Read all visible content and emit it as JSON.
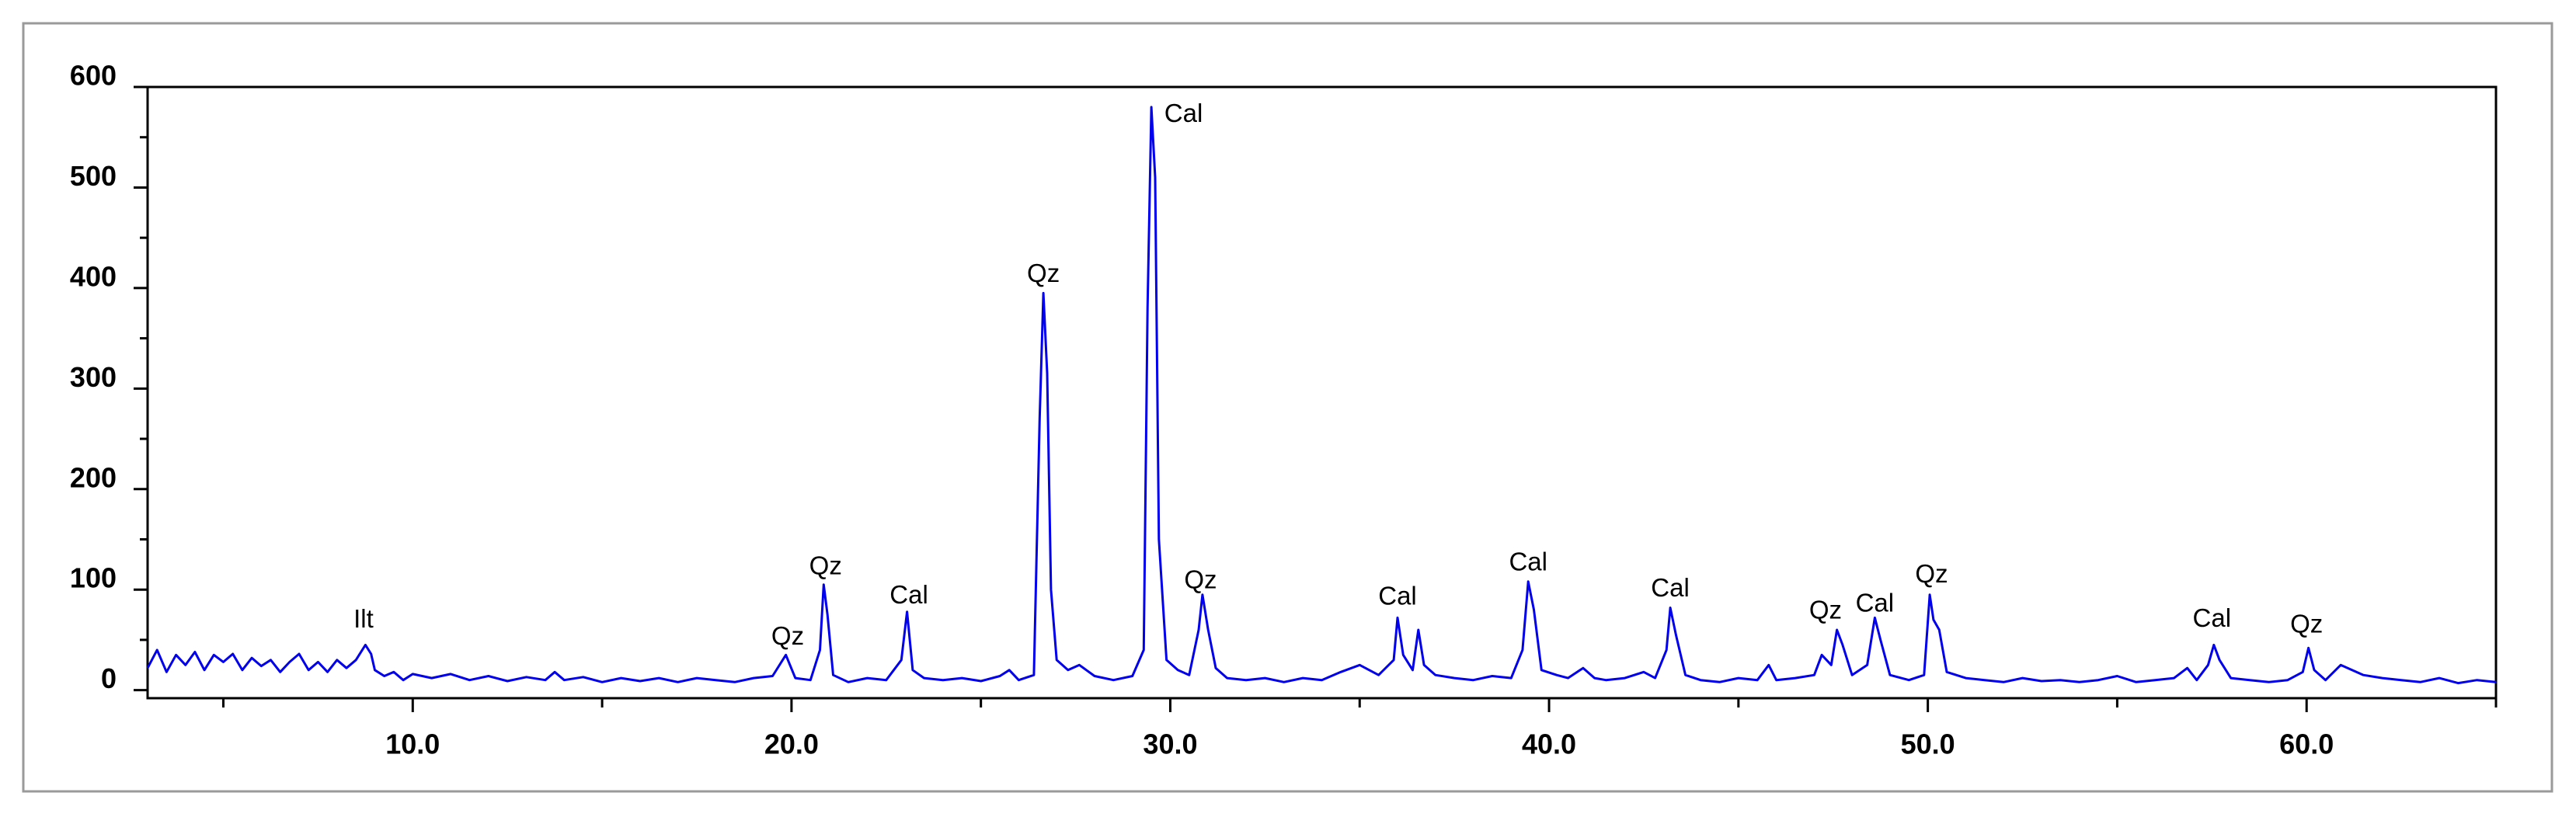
{
  "chart_data": {
    "type": "line",
    "color": "#0000ee",
    "xlim": [
      3,
      65
    ],
    "ylim": [
      -8,
      600
    ],
    "xticks": [
      {
        "value": 10,
        "label": "10.0"
      },
      {
        "value": 20,
        "label": "20.0"
      },
      {
        "value": 30,
        "label": "30.0"
      },
      {
        "value": 40,
        "label": "40.0"
      },
      {
        "value": 50,
        "label": "50.0"
      },
      {
        "value": 60,
        "label": "60.0"
      }
    ],
    "xminorticks": [
      5,
      15,
      25,
      35,
      45,
      55,
      65
    ],
    "yticks": [
      0,
      100,
      200,
      300,
      400,
      500,
      600
    ],
    "yminorticks": [
      50,
      150,
      250,
      350,
      450,
      550
    ],
    "x": [
      3.0,
      3.25,
      3.5,
      3.75,
      4.0,
      4.25,
      4.5,
      4.75,
      5.0,
      5.25,
      5.5,
      5.75,
      6.0,
      6.25,
      6.5,
      6.75,
      7.0,
      7.25,
      7.5,
      7.75,
      8.0,
      8.25,
      8.5,
      8.75,
      8.9,
      9.0,
      9.25,
      9.5,
      9.75,
      10.0,
      10.5,
      11.0,
      11.5,
      12.0,
      12.5,
      13.0,
      13.5,
      13.75,
      14.0,
      14.5,
      15.0,
      15.5,
      16.0,
      16.5,
      17.0,
      17.5,
      18.0,
      18.5,
      19.0,
      19.5,
      19.85,
      20.1,
      20.5,
      20.75,
      20.85,
      20.95,
      21.1,
      21.5,
      22.0,
      22.5,
      22.9,
      23.05,
      23.2,
      23.5,
      24.0,
      24.5,
      25.0,
      25.5,
      25.75,
      26.0,
      26.4,
      26.55,
      26.65,
      26.75,
      26.85,
      27.0,
      27.3,
      27.6,
      28.0,
      28.5,
      29.0,
      29.3,
      29.4,
      29.5,
      29.6,
      29.7,
      29.9,
      30.2,
      30.5,
      30.75,
      30.85,
      31.0,
      31.2,
      31.5,
      32.0,
      32.5,
      33.0,
      33.5,
      34.0,
      34.5,
      35.0,
      35.5,
      35.9,
      36.0,
      36.15,
      36.4,
      36.55,
      36.7,
      37.0,
      37.5,
      38.0,
      38.5,
      39.0,
      39.3,
      39.45,
      39.6,
      39.8,
      40.2,
      40.5,
      40.9,
      41.2,
      41.5,
      42.0,
      42.5,
      42.8,
      43.1,
      43.2,
      43.35,
      43.6,
      44.0,
      44.5,
      45.0,
      45.5,
      45.8,
      46.0,
      46.5,
      47.0,
      47.2,
      47.45,
      47.6,
      47.75,
      48.0,
      48.4,
      48.6,
      48.75,
      49.0,
      49.5,
      49.9,
      50.05,
      50.15,
      50.3,
      50.5,
      51.0,
      51.5,
      52.0,
      52.5,
      53.0,
      53.5,
      54.0,
      54.5,
      55.0,
      55.5,
      56.0,
      56.5,
      56.85,
      57.1,
      57.4,
      57.55,
      57.7,
      58.0,
      58.5,
      59.0,
      59.5,
      59.9,
      60.05,
      60.2,
      60.5,
      60.9,
      61.2,
      61.5,
      62.0,
      62.5,
      63.0,
      63.5,
      64.0,
      64.5,
      65.0
    ],
    "values": [
      22,
      40,
      18,
      35,
      25,
      38,
      20,
      35,
      28,
      36,
      20,
      32,
      24,
      30,
      18,
      28,
      36,
      20,
      28,
      18,
      30,
      22,
      30,
      45,
      36,
      20,
      14,
      18,
      10,
      16,
      12,
      16,
      10,
      14,
      9,
      13,
      10,
      18,
      10,
      13,
      8,
      12,
      9,
      12,
      8,
      12,
      10,
      8,
      12,
      14,
      35,
      12,
      10,
      40,
      105,
      75,
      15,
      8,
      12,
      10,
      30,
      78,
      20,
      12,
      10,
      12,
      9,
      14,
      20,
      10,
      15,
      270,
      395,
      315,
      100,
      30,
      20,
      25,
      14,
      10,
      14,
      40,
      380,
      580,
      510,
      150,
      30,
      20,
      15,
      60,
      95,
      60,
      22,
      12,
      10,
      12,
      8,
      12,
      10,
      18,
      25,
      15,
      30,
      72,
      35,
      20,
      60,
      25,
      15,
      12,
      10,
      14,
      12,
      40,
      108,
      80,
      20,
      15,
      12,
      22,
      12,
      10,
      12,
      18,
      12,
      40,
      82,
      55,
      15,
      10,
      8,
      12,
      10,
      25,
      10,
      12,
      15,
      35,
      25,
      60,
      45,
      15,
      25,
      72,
      50,
      15,
      10,
      15,
      95,
      70,
      60,
      18,
      12,
      10,
      8,
      12,
      9,
      10,
      8,
      10,
      14,
      8,
      10,
      12,
      22,
      10,
      25,
      45,
      30,
      12,
      10,
      8,
      10,
      18,
      42,
      20,
      10,
      25,
      20,
      15,
      12,
      10,
      8,
      12,
      7,
      10,
      8
    ],
    "annotations": [
      {
        "text": "Ilt",
        "x": 8.7,
        "y": 69
      },
      {
        "text": "Qz",
        "x": 19.9,
        "y": 52
      },
      {
        "text": "Qz",
        "x": 20.9,
        "y": 122
      },
      {
        "text": "Cal",
        "x": 23.1,
        "y": 93
      },
      {
        "text": "Qz",
        "x": 26.65,
        "y": 413
      },
      {
        "text": "Cal",
        "x": 30.35,
        "y": 572
      },
      {
        "text": "Qz",
        "x": 30.8,
        "y": 108
      },
      {
        "text": "Cal",
        "x": 36.0,
        "y": 92
      },
      {
        "text": "Cal",
        "x": 39.45,
        "y": 126
      },
      {
        "text": "Cal",
        "x": 43.2,
        "y": 100
      },
      {
        "text": "Qz",
        "x": 47.3,
        "y": 78
      },
      {
        "text": "Cal",
        "x": 48.6,
        "y": 85
      },
      {
        "text": "Qz",
        "x": 50.1,
        "y": 114
      },
      {
        "text": "Cal",
        "x": 57.5,
        "y": 70
      },
      {
        "text": "Qz",
        "x": 60.0,
        "y": 64
      }
    ]
  }
}
